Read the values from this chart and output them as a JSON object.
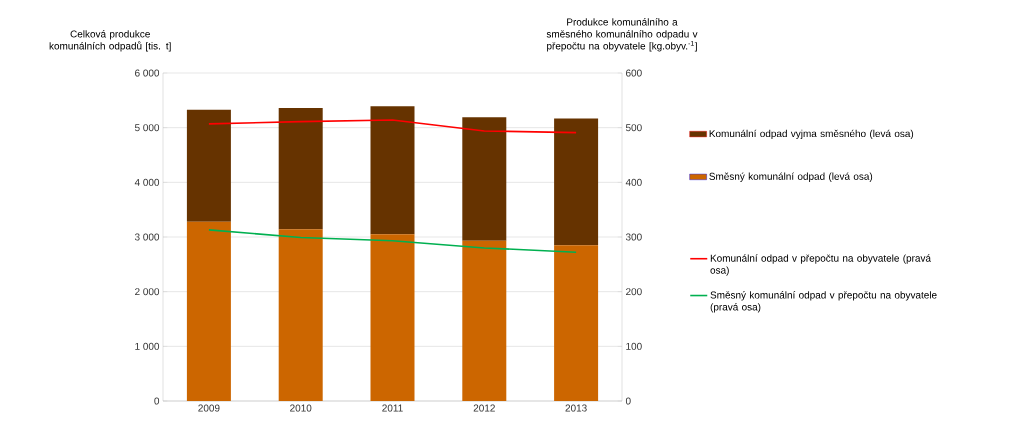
{
  "chart_data": {
    "type": "bar",
    "stacked": true,
    "ylabel": "Celková produkce komunálních odpadů  [tis. t]",
    "y2label": "Produkce komunálního a směsného komunálního odpadu v přepočtu na obyvatele [kg.obyv.$^{-1}$]",
    "categories": [
      "2009",
      "2010",
      "2011",
      "2012",
      "2013"
    ],
    "series": [
      {
        "name": "Směsný komunální odpad (levá osa)",
        "color": "#cc6600",
        "values": [
          3280,
          3140,
          3050,
          2930,
          2850
        ]
      },
      {
        "name": "Komunální odpad vyjma směsného (levá osa)",
        "color": "#663300",
        "values": [
          2050,
          2220,
          2340,
          2260,
          2320
        ]
      },
      {
        "name": "Komunální odpad v přepočtu na obyvatele (pravá osa)",
        "type": "line",
        "axis": "y2",
        "color": "#ff0000",
        "values": [
          507,
          511,
          514,
          494,
          491
        ]
      },
      {
        "name": "Směsný komunální odpad v přepočtu na obyvatele (pravá osa)",
        "type": "line",
        "axis": "y2",
        "color": "#00b050",
        "values": [
          313,
          299,
          293,
          280,
          272
        ]
      }
    ],
    "ylim": [
      0,
      6000
    ],
    "yticks": [
      {
        "value": 0,
        "label": "0"
      },
      {
        "value": 1000,
        "label": "1 000"
      },
      {
        "value": 2000,
        "label": "2 000"
      },
      {
        "value": 3000,
        "label": "3 000"
      },
      {
        "value": 4000,
        "label": "4 000"
      },
      {
        "value": 5000,
        "label": "5 000"
      },
      {
        "value": 6000,
        "label": "6 000"
      }
    ],
    "y2lim": [
      0,
      600
    ],
    "y2ticks": [
      0,
      100,
      200,
      300,
      400,
      500,
      600
    ],
    "grid": "y",
    "legend": "right",
    "marker": "none",
    "line_style": "solid"
  }
}
